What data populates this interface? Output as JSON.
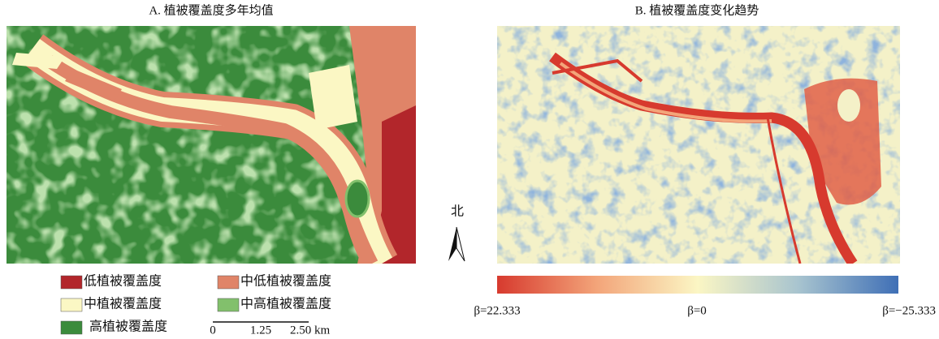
{
  "panel_a": {
    "title": "A. 植被覆盖度多年均值",
    "legend": [
      {
        "label": "低植被覆盖度",
        "color": "#b2262b"
      },
      {
        "label": "中低植被覆盖度",
        "color": "#e08468"
      },
      {
        "label": "中植被覆盖度",
        "color": "#fbf7c4"
      },
      {
        "label": "中高植被覆盖度",
        "color": "#82c06c"
      },
      {
        "label": "高植被覆盖度",
        "color": "#3b8b3c"
      }
    ],
    "scale_labels": [
      "0",
      "1.25",
      "2.50 km"
    ]
  },
  "north": "北",
  "panel_b": {
    "title": "B. 植被覆盖度变化趋势",
    "colorbar_labels": [
      "β=22.333",
      "β=0",
      "β=−25.333"
    ]
  }
}
